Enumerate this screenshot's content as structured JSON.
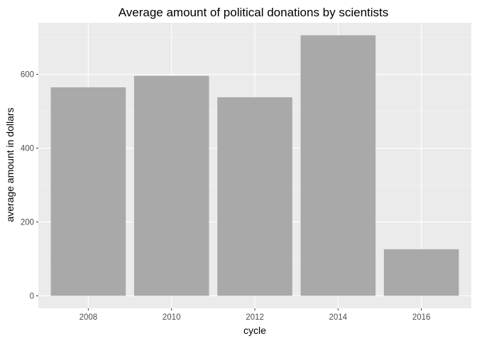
{
  "chart_data": {
    "type": "bar",
    "title": "Average amount of political donations by scientists",
    "xlabel": "cycle",
    "ylabel": "average amount in dollars",
    "categories": [
      "2008",
      "2010",
      "2012",
      "2014",
      "2016"
    ],
    "values": [
      565,
      596,
      538,
      706,
      126
    ],
    "y_ticks": [
      0,
      200,
      400,
      600
    ],
    "ylim": [
      -34,
      740
    ],
    "grid": true,
    "legend": "none",
    "colors": {
      "bar": "#a9a9a9",
      "panel_background": "#ebebeb",
      "grid_major": "#ffffff",
      "grid_minor": "#f5f5f5"
    }
  }
}
